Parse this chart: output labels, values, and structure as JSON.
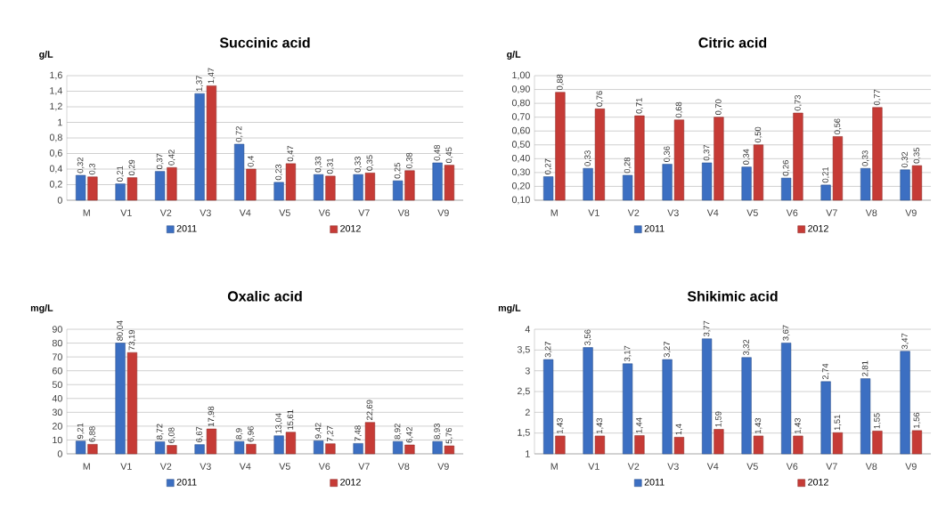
{
  "chart_data": [
    {
      "type": "bar",
      "title": "Succinic acid",
      "ylabel": "g/L",
      "categories": [
        "M",
        "V1",
        "V2",
        "V3",
        "V4",
        "V5",
        "V6",
        "V7",
        "V8",
        "V9"
      ],
      "series": [
        {
          "name": "2011",
          "color": "#3c6fc2",
          "values": [
            0.32,
            0.21,
            0.37,
            1.37,
            0.72,
            0.23,
            0.33,
            0.33,
            0.25,
            0.48
          ],
          "value_labels": [
            "0,32",
            "0,21",
            "0,37",
            "1,37",
            "0,72",
            "0,23",
            "0,33",
            "0,33",
            "0,25",
            "0,48"
          ]
        },
        {
          "name": "2012",
          "color": "#c63b36",
          "values": [
            0.3,
            0.29,
            0.42,
            1.47,
            0.4,
            0.47,
            0.31,
            0.35,
            0.38,
            0.45
          ],
          "value_labels": [
            "0,3",
            "0,29",
            "0,42",
            "1,47",
            "0,4",
            "0,47",
            "0,31",
            "0,35",
            "0,38",
            "0,45"
          ]
        }
      ],
      "ylim": [
        0,
        1.6
      ],
      "yticks": [
        0,
        {
          "value": 0.2,
          "label": "0,2"
        },
        {
          "value": 0.4,
          "label": "0,4"
        },
        {
          "value": 0.6,
          "label": "0,6"
        },
        {
          "value": 0.8,
          "label": "0,8"
        },
        1,
        {
          "value": 1.2,
          "label": "1,2"
        },
        {
          "value": 1.4,
          "label": "1,4"
        },
        {
          "value": 1.6,
          "label": "1,6"
        }
      ],
      "grid": "y",
      "legend": "bottom"
    },
    {
      "type": "bar",
      "title": "Citric acid",
      "ylabel": "g/L",
      "categories": [
        "M",
        "V1",
        "V2",
        "V3",
        "V4",
        "V5",
        "V6",
        "V7",
        "V8",
        "V9"
      ],
      "series": [
        {
          "name": "2011",
          "color": "#3c6fc2",
          "values": [
            0.27,
            0.33,
            0.28,
            0.36,
            0.37,
            0.34,
            0.26,
            0.21,
            0.33,
            0.32
          ],
          "value_labels": [
            "0,27",
            "0,33",
            "0,28",
            "0,36",
            "0,37",
            "0,34",
            "0,26",
            "0,21",
            "0,33",
            "0,32"
          ]
        },
        {
          "name": "2012",
          "color": "#c63b36",
          "values": [
            0.88,
            0.76,
            0.71,
            0.68,
            0.7,
            0.5,
            0.73,
            0.56,
            0.77,
            0.35
          ],
          "value_labels": [
            "0,88",
            "0,76",
            "0,71",
            "0,68",
            "0,70",
            "0,50",
            "0,73",
            "0,56",
            "0,77",
            "0,35"
          ]
        }
      ],
      "ylim": [
        0.1,
        1.0
      ],
      "yticks": [
        {
          "value": 0.1,
          "label": "0,10"
        },
        {
          "value": 0.2,
          "label": "0,20"
        },
        {
          "value": 0.3,
          "label": "0,30"
        },
        {
          "value": 0.4,
          "label": "0,40"
        },
        {
          "value": 0.5,
          "label": "0,50"
        },
        {
          "value": 0.6,
          "label": "0,60"
        },
        {
          "value": 0.7,
          "label": "0,70"
        },
        {
          "value": 0.8,
          "label": "0,80"
        },
        {
          "value": 0.9,
          "label": "0,90"
        },
        {
          "value": 1.0,
          "label": "1,00"
        }
      ],
      "grid": "y",
      "legend": "bottom"
    },
    {
      "type": "bar",
      "title": "Oxalic acid",
      "ylabel": "mg/L",
      "categories": [
        "M",
        "V1",
        "V2",
        "V3",
        "V4",
        "V5",
        "V6",
        "V7",
        "V8",
        "V9"
      ],
      "series": [
        {
          "name": "2011",
          "color": "#3c6fc2",
          "values": [
            9.21,
            80.04,
            8.72,
            6.67,
            8.9,
            13.04,
            9.42,
            7.48,
            8.92,
            8.93
          ],
          "value_labels": [
            "9,21",
            "80,04",
            "8,72",
            "6,67",
            "8,9",
            "13,04",
            "9,42",
            "7,48",
            "8,92",
            "8,93"
          ]
        },
        {
          "name": "2012",
          "color": "#c63b36",
          "values": [
            6.88,
            73.19,
            6.08,
            17.98,
            6.96,
            15.61,
            7.27,
            22.69,
            6.42,
            5.76
          ],
          "value_labels": [
            "6,88",
            "73,19",
            "6,08",
            "17,98",
            "6,96",
            "15,61",
            "7,27",
            "22,69",
            "6,42",
            "5,76"
          ]
        }
      ],
      "ylim": [
        0,
        90
      ],
      "yticks": [
        0,
        10,
        20,
        30,
        40,
        50,
        60,
        70,
        80,
        90
      ],
      "grid": "y",
      "legend": "bottom"
    },
    {
      "type": "bar",
      "title": "Shikimic acid",
      "ylabel": "mg/L",
      "categories": [
        "M",
        "V1",
        "V2",
        "V3",
        "V4",
        "V5",
        "V6",
        "V7",
        "V8",
        "V9"
      ],
      "series": [
        {
          "name": "2011",
          "color": "#3c6fc2",
          "values": [
            3.27,
            3.56,
            3.17,
            3.27,
            3.77,
            3.32,
            3.67,
            2.74,
            2.81,
            3.47
          ],
          "value_labels": [
            "3,27",
            "3,56",
            "3,17",
            "3,27",
            "3,77",
            "3,32",
            "3,67",
            "2,74",
            "2,81",
            "3,47"
          ]
        },
        {
          "name": "2012",
          "color": "#c63b36",
          "values": [
            1.43,
            1.43,
            1.44,
            1.4,
            1.59,
            1.43,
            1.43,
            1.51,
            1.55,
            1.56
          ],
          "value_labels": [
            "1,43",
            "1,43",
            "1,44",
            "1,4",
            "1,59",
            "1,43",
            "1,43",
            "1,51",
            "1,55",
            "1,56"
          ]
        }
      ],
      "ylim": [
        1,
        4
      ],
      "yticks": [
        1,
        {
          "value": 1.5,
          "label": "1,5"
        },
        2,
        {
          "value": 2.5,
          "label": "2,5"
        },
        3,
        {
          "value": 3.5,
          "label": "3,5"
        },
        4
      ],
      "grid": "y",
      "legend": "bottom"
    }
  ]
}
